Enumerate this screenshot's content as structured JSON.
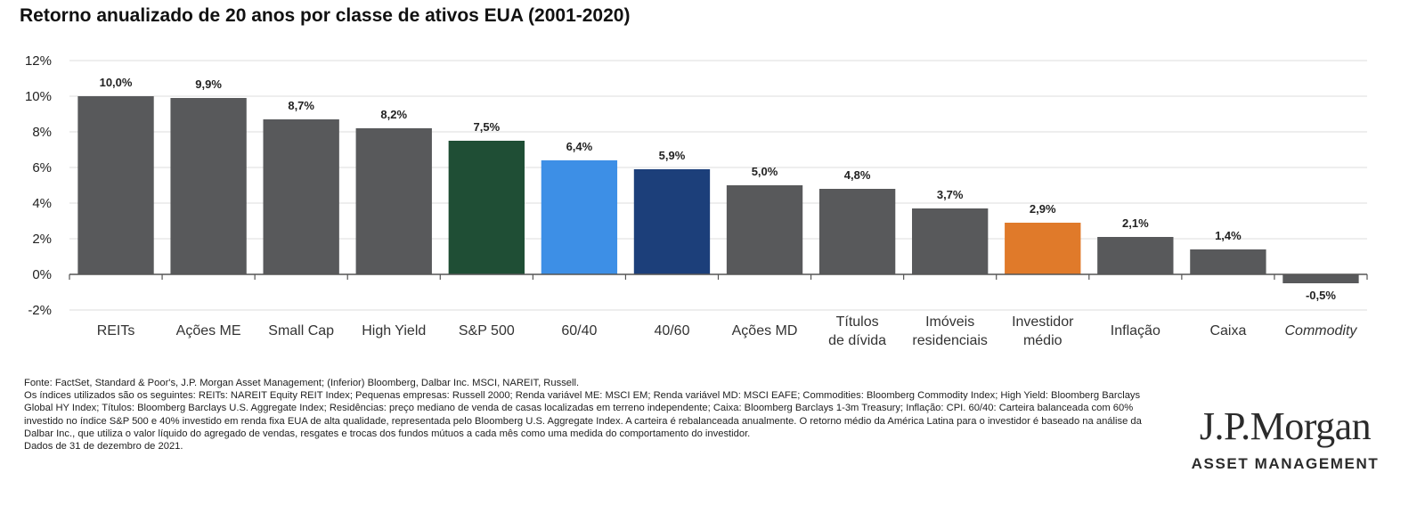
{
  "title": "Retorno anualizado de 20 anos por classe de ativos EUA (2001-2020)",
  "chart_data": {
    "type": "bar",
    "categories": [
      "REITs",
      "Ações ME",
      "Small Cap",
      "High Yield",
      "S&P 500",
      "60/40",
      "40/60",
      "Ações MD",
      "Títulos de dívida",
      "Imóveis residenciais",
      "Investidor médio",
      "Inflação",
      "Caixa",
      "Commodity"
    ],
    "category_lines": [
      [
        "REITs"
      ],
      [
        "Ações ME"
      ],
      [
        "Small Cap"
      ],
      [
        "High Yield"
      ],
      [
        "S&P 500"
      ],
      [
        "60/40"
      ],
      [
        "40/60"
      ],
      [
        "Ações MD"
      ],
      [
        "Títulos",
        "de dívida"
      ],
      [
        "Imóveis",
        "residenciais"
      ],
      [
        "Investidor",
        "médio"
      ],
      [
        "Inflação"
      ],
      [
        "Caixa"
      ],
      [
        "Commodity"
      ]
    ],
    "values": [
      10.0,
      9.9,
      8.7,
      8.2,
      7.5,
      6.4,
      5.9,
      5.0,
      4.8,
      3.7,
      2.9,
      2.1,
      1.4,
      -0.5
    ],
    "data_labels": [
      "10,0%",
      "9,9%",
      "8,7%",
      "8,2%",
      "7,5%",
      "6,4%",
      "5,9%",
      "5,0%",
      "4,8%",
      "3,7%",
      "2,9%",
      "2,1%",
      "1,4%",
      "-0,5%"
    ],
    "colors": [
      "#58595b",
      "#58595b",
      "#58595b",
      "#58595b",
      "#1f4e35",
      "#3d8fe6",
      "#1c3f7a",
      "#58595b",
      "#58595b",
      "#58595b",
      "#e07a2a",
      "#58595b",
      "#58595b",
      "#58595b"
    ],
    "italic_categories": [
      "Commodity"
    ],
    "ylim": [
      -2,
      12
    ],
    "yticks": [
      -2,
      0,
      2,
      4,
      6,
      8,
      10,
      12
    ],
    "ytick_labels": [
      "-2%",
      "0%",
      "2%",
      "4%",
      "6%",
      "8%",
      "10%",
      "12%"
    ],
    "grid": true,
    "xlabel": "",
    "ylabel": ""
  },
  "footnotes": [
    "Fonte: FactSet, Standard & Poor's, J.P. Morgan Asset Management; (Inferior) Bloomberg, Dalbar Inc. MSCI, NAREIT, Russell.",
    "Os índices utilizados são os seguintes: REITs: NAREIT Equity REIT Index; Pequenas empresas: Russell 2000; Renda variável ME: MSCI EM; Renda variável MD: MSCI EAFE; Commodities: Bloomberg Commodity Index; High Yield: Bloomberg Barclays Global HY Index; Títulos: Bloomberg Barclays U.S. Aggregate Index; Residências: preço mediano de venda de casas localizadas em terreno independente; Caixa: Bloomberg Barclays 1-3m Treasury; Inflação: CPI. 60/40: Carteira balanceada com 60% investido no índice S&P 500 e 40% investido em renda fixa EUA de alta qualidade, representada pelo Bloomberg U.S. Aggregate Index. A carteira é rebalanceada anualmente. O retorno médio da América Latina para o investidor é baseado na análise da Dalbar Inc., que utiliza o valor líquido do agregado de vendas, resgates e trocas dos fundos mútuos a cada mês como uma medida do comportamento do investidor.",
    "Dados de 31 de dezembro de 2021."
  ],
  "logo": {
    "name": "J.P.Morgan",
    "subtitle": "ASSET MANAGEMENT"
  }
}
